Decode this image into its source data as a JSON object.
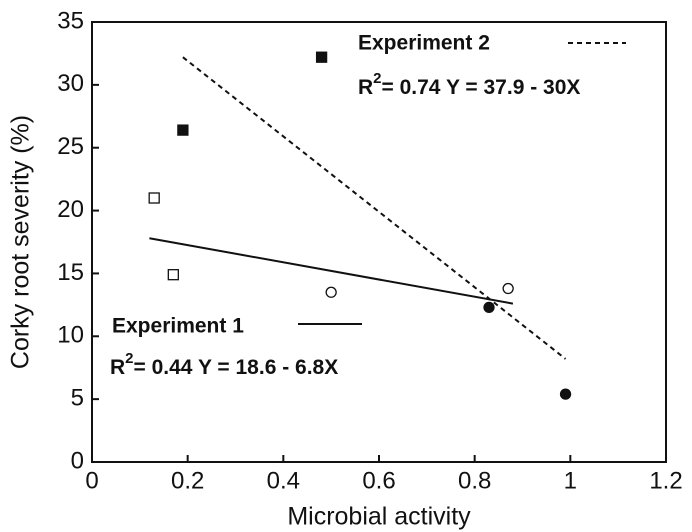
{
  "chart_data": {
    "type": "scatter",
    "x_label": "Microbial activity",
    "y_label": "Corky root severity (%)",
    "xlim": [
      0,
      1.2
    ],
    "xticks": [
      0,
      0.2,
      0.4,
      0.6,
      0.8,
      1,
      1.2
    ],
    "ylim": [
      0,
      35
    ],
    "yticks": [
      0,
      5,
      10,
      15,
      20,
      25,
      30,
      35
    ],
    "series": [
      {
        "name": "Experiment 1",
        "color": "#111111",
        "filled": false,
        "markers": [
          "square",
          "square",
          "circle",
          "circle"
        ],
        "x": [
          0.13,
          0.17,
          0.5,
          0.87
        ],
        "values": [
          21,
          14.9,
          13.5,
          13.8
        ],
        "fit": {
          "style": "solid",
          "x": [
            0.12,
            0.88
          ],
          "values": [
            17.8,
            12.6
          ]
        },
        "r_label": "R",
        "r_sup": "2",
        "equation": "= 0.44   Y = 18.6 - 6.8X"
      },
      {
        "name": "Experiment 2",
        "color": "#111111",
        "filled": true,
        "markers": [
          "square",
          "square",
          "circle",
          "circle"
        ],
        "x": [
          0.19,
          0.48,
          0.83,
          0.99
        ],
        "values": [
          26.4,
          32.2,
          12.3,
          5.4
        ],
        "fit": {
          "style": "dashed",
          "x": [
            0.19,
            0.99
          ],
          "values": [
            32.2,
            8.2
          ]
        },
        "r_label": "R",
        "r_sup": "2",
        "equation": "= 0.74   Y = 37.9 - 30X"
      }
    ]
  }
}
